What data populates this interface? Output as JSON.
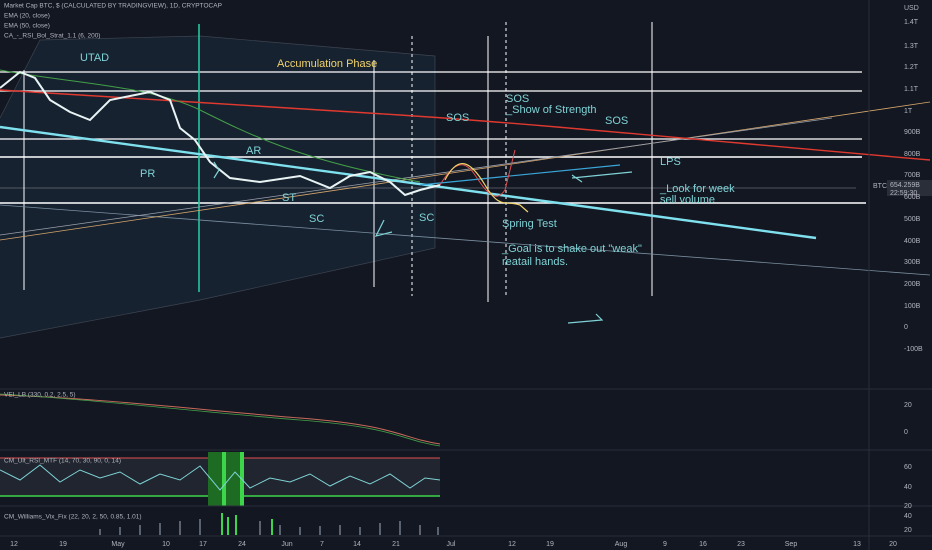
{
  "header": {
    "symbol": "Market Cap BTC, $ (CALCULATED BY TRADINGVIEW), 1D, CRYPTOCAP",
    "indicators": [
      "EMA (20, close)",
      "EMA (50, close)",
      "CA_-_RSI_Bol_Strat_1.1 (6, 200)"
    ]
  },
  "annotations": {
    "utad": "UTAD",
    "phase": "Accumulation Phase",
    "pr": "PR",
    "ar": "AR",
    "st": "ST",
    "sc1": "SC",
    "sc2": "SC",
    "sos1": "SOS",
    "sos2": "SOS",
    "show": "_Show of Strength",
    "sos3": "SOS",
    "lps": "LPS",
    "look1": "_Look for week",
    "look2": "sell volume",
    "spring": "Spring Test",
    "goal1": "_Goal is to shake out \"weak\"",
    "goal2": "reatail hands."
  },
  "price_axis": {
    "unit": "USD",
    "labels": [
      "1.4T",
      "1.3T",
      "1.2T",
      "1.1T",
      "1T",
      "900B",
      "800B",
      "700B",
      "600B",
      "500B",
      "400B",
      "300B",
      "200B",
      "100B",
      "0",
      "-100B"
    ],
    "badge": "BTC",
    "last_price": "654.259B",
    "countdown": "22:59:30"
  },
  "panes": [
    {
      "title": "VEI_LB (330, 0.2, 2.5, 5)",
      "labels": [
        "20",
        "0"
      ]
    },
    {
      "title": "CM_Ult_RSI_MTF (14, 70, 30, 90, 0, 14)",
      "labels": [
        "60",
        "40",
        "20"
      ]
    },
    {
      "title": "CM_Williams_Vix_Fix (22, 20, 2, 50, 0.85, 1.01)",
      "labels": [
        "40",
        "20"
      ]
    }
  ],
  "time_axis": [
    "12",
    "19",
    "May",
    "10",
    "17",
    "24",
    "Jun",
    "7",
    "14",
    "21",
    "Jul",
    "12",
    "19",
    "Aug",
    "9",
    "16",
    "23",
    "Sep",
    "13",
    "20"
  ]
}
